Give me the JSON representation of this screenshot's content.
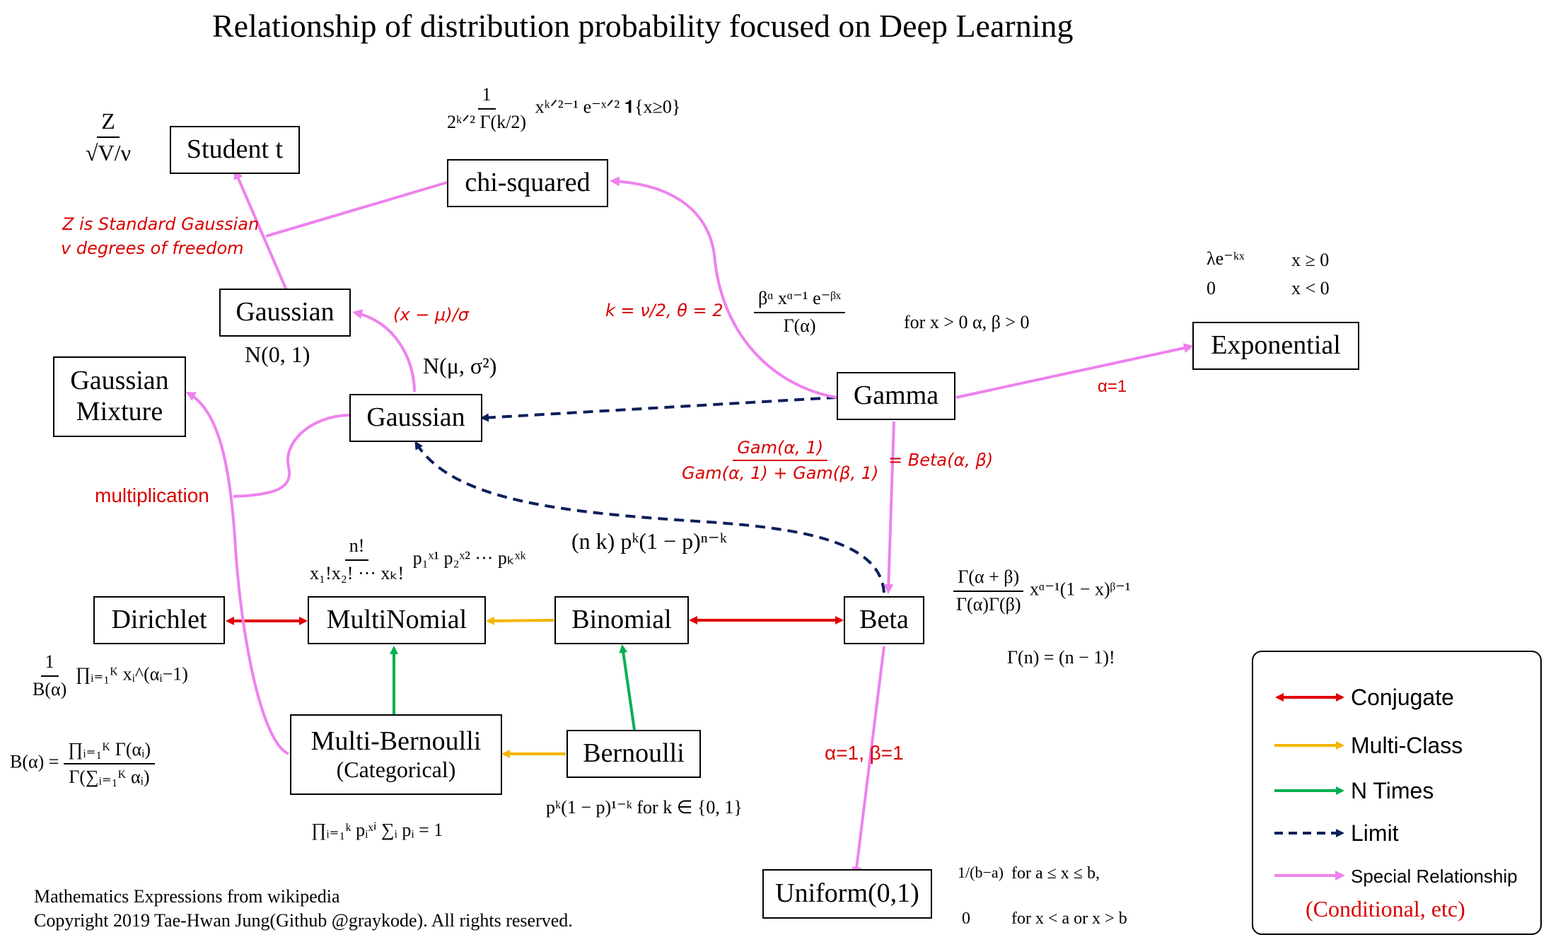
{
  "title": "Relationship of distribution probability focused on Deep Learning",
  "colors": {
    "conjugate": "#e00000",
    "multi_class": "#f5b400",
    "n_times": "#00b050",
    "limit": "#0b1f5c",
    "special": "#ee82ee",
    "annotation_red": "#d90000"
  },
  "nodes": {
    "student_t": "Student t",
    "chi_squared": "chi-squared",
    "gaussian_std": "Gaussian",
    "gaussian": "Gaussian",
    "gaussian_mixture_1": "Gaussian",
    "gaussian_mixture_2": "Mixture",
    "gamma": "Gamma",
    "exponential": "Exponential",
    "dirichlet": "Dirichlet",
    "multinomial": "MultiNomial",
    "binomial": "Binomial",
    "beta": "Beta",
    "multi_bernoulli": "Multi-Bernoulli",
    "categorical": "(Categorical)",
    "bernoulli": "Bernoulli",
    "uniform": "Uniform(0,1)"
  },
  "formulas": {
    "student_t_num": "Z",
    "student_t_den": "√V/ν",
    "chi_num": "1",
    "chi_den": "2ᵏᐟ² Γ(k/2)",
    "chi_tail": "xᵏᐟ²⁻¹ e⁻ˣᐟ² 𝟏{x≥0}",
    "gaussian_std_param": "N(0, 1)",
    "gaussian_param": "N(μ, σ²)",
    "gamma_num": "βᵅ xᵅ⁻¹ e⁻ᵝˣ",
    "gamma_den": "Γ(α)",
    "gamma_cond": "for x > 0    α, β > 0",
    "exp_row1_a": "λe⁻ᵏˣ",
    "exp_row1_b": "x ≥ 0",
    "exp_row2_a": "0",
    "exp_row2_b": "x < 0",
    "multinomial_num": "n!",
    "multinomial_den": "x₁!x₂! ··· xₖ!",
    "multinomial_tail": "p₁ˣ¹ p₂ˣ² ··· pₖˣᵏ",
    "binomial": "(n k) pᵏ(1 − p)ⁿ⁻ᵏ",
    "beta_num": "Γ(α + β)",
    "beta_den": "Γ(α)Γ(β)",
    "beta_tail": "xᵅ⁻¹(1 − x)ᵝ⁻¹",
    "gamma_fn": "Γ(n) = (n − 1)!",
    "dirichlet_num": "1",
    "dirichlet_den": "B(α)",
    "dirichlet_tail": "∏ᵢ₌₁ᴷ xᵢ^(αᵢ−1)",
    "beta_fn_lhs": "B(α) =",
    "beta_fn_num": "∏ᵢ₌₁ᴷ Γ(αᵢ)",
    "beta_fn_den": "Γ(∑ᵢ₌₁ᴷ αᵢ)",
    "categorical": "∏ᵢ₌₁ᵏ pᵢˣⁱ    ∑ᵢ pᵢ = 1",
    "bernoulli": "pᵏ(1 − p)¹⁻ᵏ    for k ∈ {0, 1}",
    "uniform_row1_a": "1/(b−a)",
    "uniform_row1_b": "for a ≤ x ≤ b,",
    "uniform_row2_a": "0",
    "uniform_row2_b": "for x < a or x > b"
  },
  "annotations": {
    "z_standard": "Z is  Standard Gaussian",
    "v_dof": "v degrees of freedom",
    "standardize": "(x − μ)/σ",
    "k_theta": "k = ν/2, θ = 2",
    "alpha_exp": "α=1",
    "multiplication": "multiplication",
    "gam_num": "Gam(α, 1)",
    "gam_den": "Gam(α, 1) + Gam(β, 1)",
    "gam_rhs": "= Beta(α, β)",
    "alpha_beta_one": "α=1,  β=1"
  },
  "legend": [
    {
      "label": "Conjugate",
      "style": "conjugate"
    },
    {
      "label": "Multi-Class",
      "style": "multi_class"
    },
    {
      "label": "N Times",
      "style": "n_times"
    },
    {
      "label": "Limit",
      "style": "limit"
    },
    {
      "label": "Special Relationship",
      "style": "special"
    }
  ],
  "legend_note": "(Conditional, etc)",
  "footer": {
    "line1": "Mathematics Expressions from wikipedia",
    "line2": "Copyright 2019 Tae-Hwan Jung(Github @graykode). All rights reserved."
  }
}
